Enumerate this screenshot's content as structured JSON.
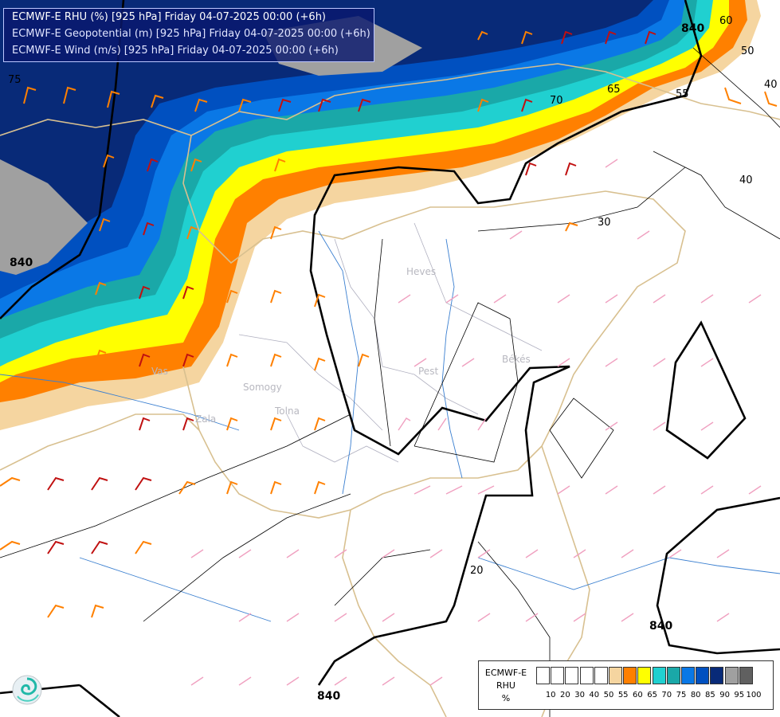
{
  "titles": [
    "ECMWF-E RHU (%) [925 hPa] Friday 04-07-2025 00:00 (+6h)",
    "ECMWF-E Geopotential (m) [925 hPa] Friday 04-07-2025 00:00 (+6h)",
    "ECMWF-E Wind (m/s) [925 hPa] Friday 04-07-2025 00:00 (+6h)"
  ],
  "legend": {
    "name": "ECMWF-E",
    "var": "RHU",
    "unit": "%",
    "ticks": [
      "10",
      "20",
      "30",
      "40",
      "50",
      "55",
      "60",
      "65",
      "70",
      "75",
      "80",
      "85",
      "90",
      "95",
      "100"
    ],
    "colors": [
      "#ffffff",
      "#ffffff",
      "#ffffff",
      "#ffffff",
      "#ffffff",
      "#f5d5a0",
      "#ff8000",
      "#ffff00",
      "#20d0d0",
      "#1aa8a8",
      "#0a78e6",
      "#0050c0",
      "#082a78",
      "#a0a0a0",
      "#606060"
    ]
  },
  "contour_labels": {
    "rhu": [
      "75",
      "70",
      "65",
      "60",
      "55",
      "50",
      "40",
      "40",
      "30",
      "20"
    ],
    "geopotential": [
      "840",
      "840",
      "840",
      "840"
    ]
  },
  "place_labels": [
    "Heves",
    "Pest",
    "Békés",
    "Vas",
    "Somogy",
    "Zala",
    "Tolna"
  ],
  "icons": {
    "logo": "swirl-logo-icon"
  }
}
